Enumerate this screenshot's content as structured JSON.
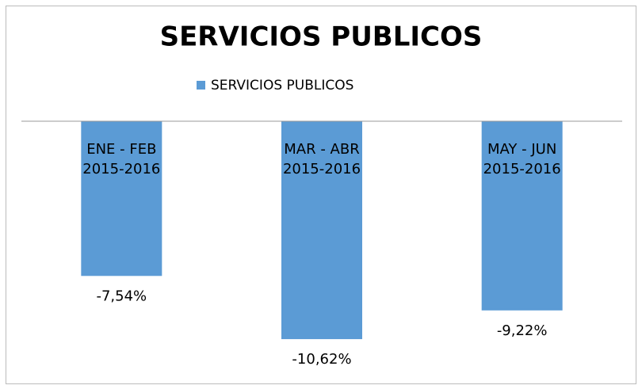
{
  "chart_data": {
    "type": "bar",
    "title": "SERVICIOS PUBLICOS",
    "categories": [
      "ENE - FEB\n2015-2016",
      "MAR - ABR\n2015-2016",
      "MAY - JUN\n2015-2016"
    ],
    "series": [
      {
        "name": "SERVICIOS PUBLICOS",
        "color": "#5b9bd5",
        "values": [
          -7.54,
          -10.62,
          -9.22
        ],
        "value_labels": [
          "-7,54%",
          "-10,62%",
          "-9,22%"
        ]
      }
    ],
    "legend": "top"
  }
}
